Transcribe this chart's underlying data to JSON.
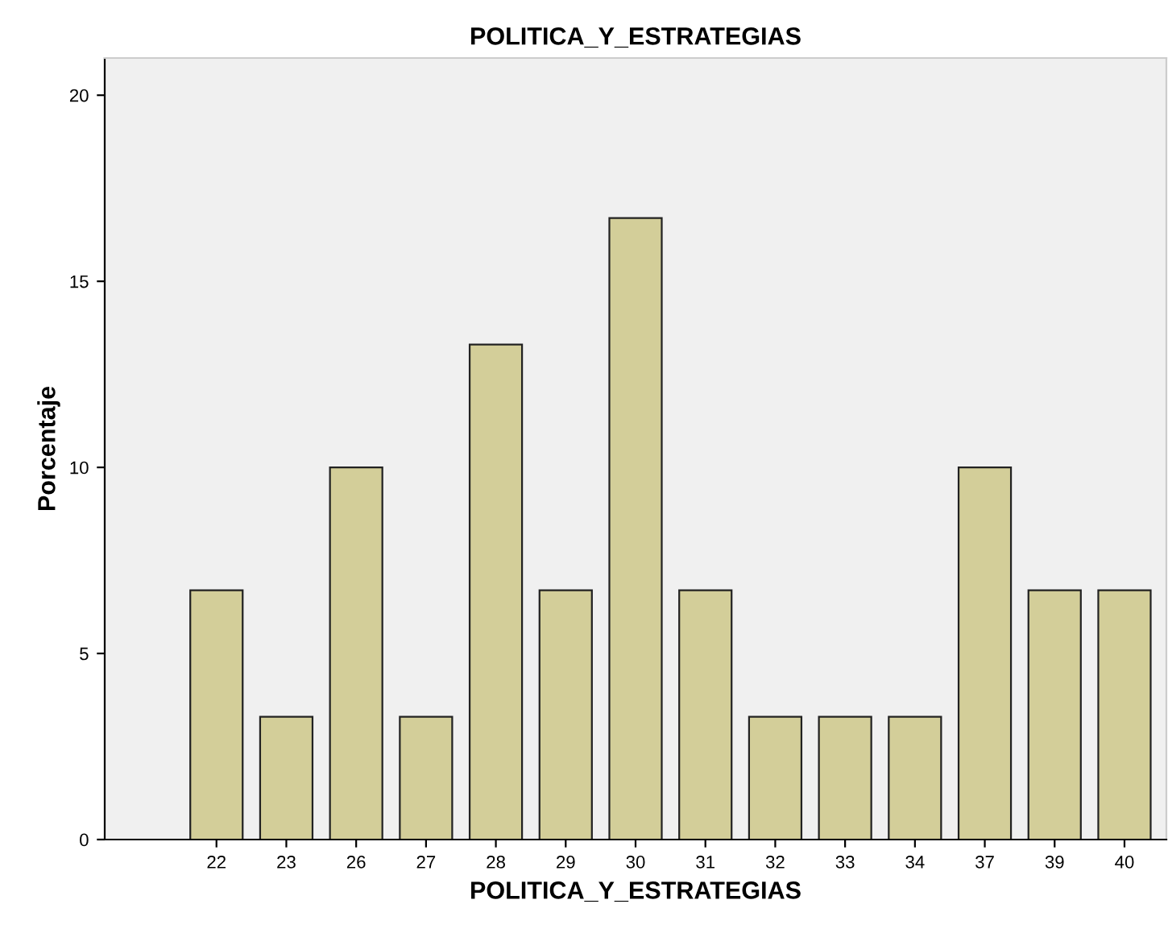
{
  "chart_data": {
    "type": "bar",
    "title": "POLITICA_Y_ESTRATEGIAS",
    "xlabel": "POLITICA_Y_ESTRATEGIAS",
    "ylabel": "Porcentaje",
    "categories": [
      "22",
      "23",
      "26",
      "27",
      "28",
      "29",
      "30",
      "31",
      "32",
      "33",
      "34",
      "37",
      "39",
      "40"
    ],
    "values": [
      6.7,
      3.3,
      10,
      3.3,
      13.3,
      6.7,
      16.7,
      6.7,
      3.3,
      3.3,
      3.3,
      10,
      6.7,
      6.7
    ],
    "color": "#d3ce99",
    "ylim": [
      0,
      21
    ],
    "yticks": [
      0,
      5,
      10,
      15,
      20
    ],
    "grid": false
  }
}
